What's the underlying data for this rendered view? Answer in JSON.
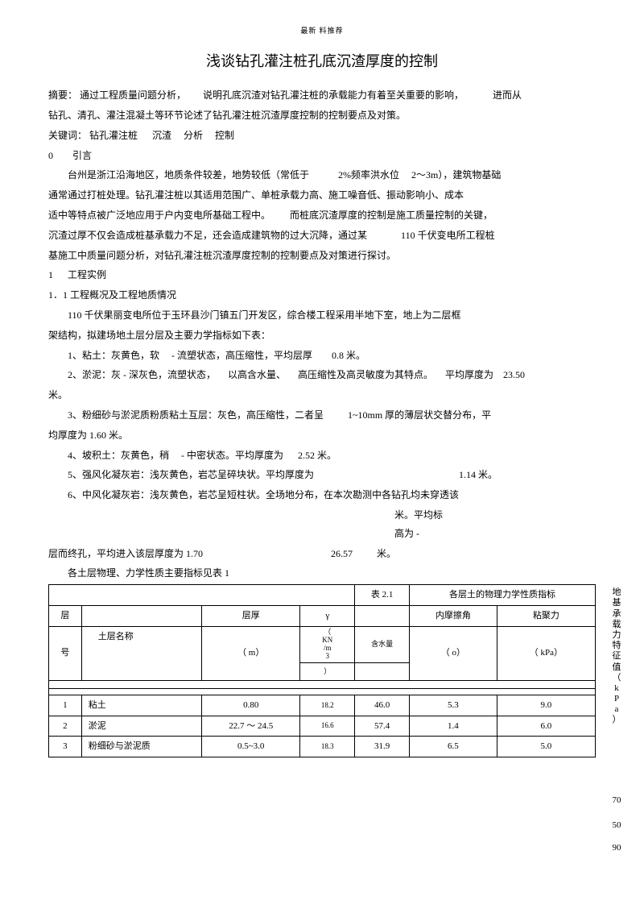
{
  "header": "最新 料推荐",
  "title": "浅谈钻孔灌注桩孔底沉渣厚度的控制",
  "abstract_label": "摘要：",
  "abstract_parts": [
    "通过工程质量问题分析，",
    "说明孔底沉渣对钻孔灌注桩的承载能力有着至关重要的影响，",
    "进而从"
  ],
  "abstract_line2": "钻孔、清孔、灌注混凝土等环节论述了钻孔灌注桩沉渣厚度控制的控制要点及对策。",
  "keywords_label": "关键词：",
  "keywords": "钻孔灌注桩      沉渣     分析     控制",
  "s0_label": "0",
  "s0_title": "引言",
  "p0a": [
    "台州是浙江沿海地区，地质条件较差，地势较低（常低于",
    "2%频率洪水位",
    "2～3m），建筑物基础"
  ],
  "p0b": "通常通过打桩处理。钻孔灌注桩以其适用范围广、单桩承载力高、施工噪音低、振动影响小、成本",
  "p0c": [
    "适中等特点被广泛地应用于户内变电所基础工程中。",
    "而桩底沉渣厚度的控制是施工质量控制的关键，"
  ],
  "p0d": [
    "沉渣过厚不仅会造成桩基承载力不足，还会造成建筑物的过大沉降，通过某",
    "110 千伏变电所工程桩"
  ],
  "p0e": "基施工中质量问题分析，对钻孔灌注桩沉渣厚度控制的控制要点及对策进行探讨。",
  "s1_label": "1",
  "s1_title": "工程实例",
  "s11": "1．1 工程概况及工程地质情况",
  "p11a": "110 千伏果丽变电所位于玉环县沙门镇五门开发区，综合楼工程采用半地下室，地上为二层框",
  "p11b": "架结构，拟建场地土层分层及主要力学指标如下表：",
  "l1": [
    "1、粘土：灰黄色，软",
    "- 流塑状态，高压缩性，平均层厚",
    "0.8 米。"
  ],
  "l2": [
    "2、淤泥：灰 - 深灰色，流塑状态，",
    "以高含水量、",
    "高压缩性及高灵敏度为其特点。",
    "平均厚度为",
    "23.50"
  ],
  "l2e": "米。",
  "l3": [
    "3、粉细砂与淤泥质粉质粘土互层：灰色，高压缩性，二者呈",
    "1~10mm 厚的薄层状交替分布，平"
  ],
  "l3e": "均厚度为  1.60 米。",
  "l4": [
    "4、坡积土：灰黄色，稍",
    "- 中密状态。平均厚度为",
    "2.52 米。"
  ],
  "l5": [
    "5、强风化凝灰岩：浅灰黄色，岩芯呈碎块状。平均厚度为",
    "1.14 米。"
  ],
  "l6": "6、中风化凝灰岩：浅灰黄色，岩芯呈短柱状。全场地分布，在本次勘测中各钻孔均未穿透该",
  "l6b": [
    "米。平均标",
    "高为  -"
  ],
  "l6c": [
    "层而终孔，平均进入该层厚度为 1.70",
    "26.57",
    "米。"
  ],
  "tcap": "各土层物理、力学性质主要指标见表 1",
  "t_hdr1": "表 2.1",
  "t_hdr2": "各层土的物理力学性质指标",
  "th_layer": "层",
  "th_layername": "土层名称",
  "th_num": "号",
  "th_thick": "层厚",
  "th_thick_u": "（ m）",
  "th_gamma": "γ",
  "th_gamma_u1": "（",
  "th_gamma_u2": "KN",
  "th_gamma_u3": "/m",
  "th_gamma_u4": "3",
  "th_gamma_u5": "）",
  "th_w": "含水量",
  "th_fric": "内摩擦角",
  "th_fric_u": "（ o）",
  "th_coh": "粘聚力",
  "th_coh_u": "（ kPa）",
  "side_label": "地基承载力特征值（kPa）",
  "rows": [
    {
      "n": "1",
      "name": "粘土",
      "thick": "0.80",
      "g": "18.2",
      "w": "46.0",
      "fric": "5.3",
      "coh": "9.0",
      "side": "70"
    },
    {
      "n": "2",
      "name": "淤泥",
      "thick": "22.7 ～ 24.5",
      "g": "16.6",
      "w": "57.4",
      "fric": "1.4",
      "coh": "6.0",
      "side": "50"
    },
    {
      "n": "3",
      "name": "粉细砂与淤泥质",
      "thick": "0.5~3.0",
      "g": "18.3",
      "w": "31.9",
      "fric": "6.5",
      "coh": "5.0",
      "side": "90"
    }
  ]
}
